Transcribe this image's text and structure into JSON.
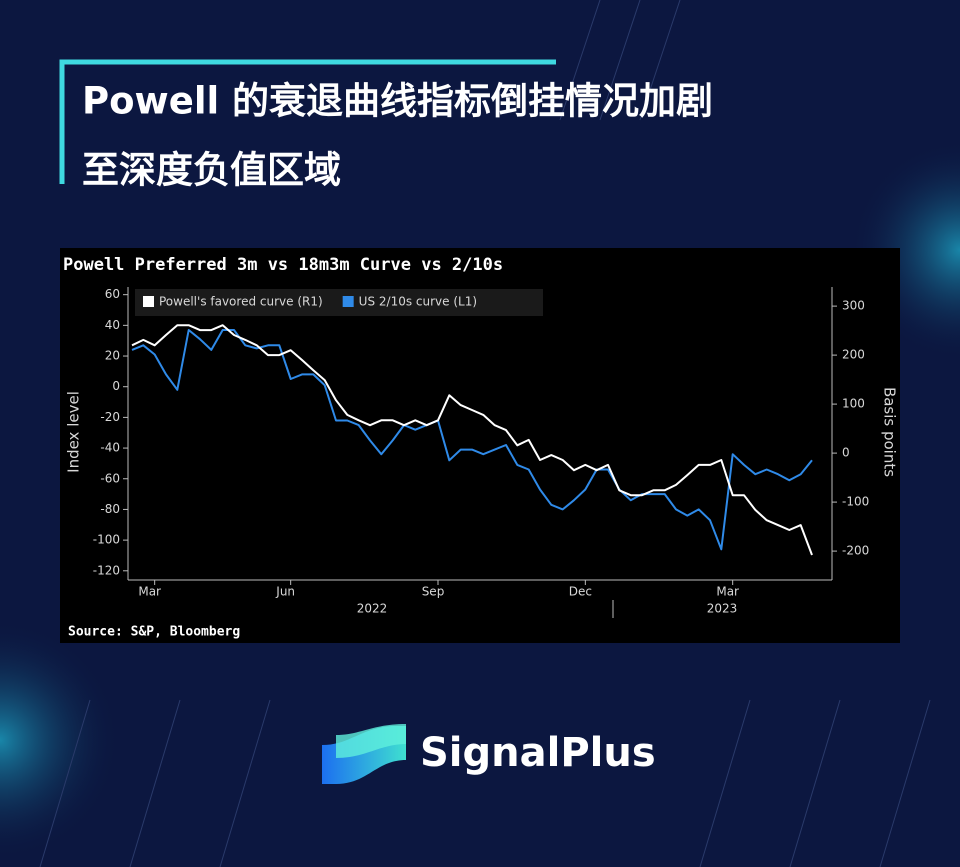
{
  "headline": {
    "lines": [
      "Powell 的衰退曲线指标倒挂情况加剧",
      "至深度负值区域"
    ]
  },
  "brand": "SignalPlus",
  "chart_data": {
    "type": "line",
    "title": "Powell Preferred 3m vs 18m3m Curve vs 2/10s",
    "source": "Source: S&P, Bloomberg",
    "ylabel": "Index level",
    "y2label": "Basis points",
    "categories": [
      null,
      null,
      "Mar",
      null,
      null,
      null,
      null,
      null,
      null,
      null,
      null,
      null,
      null,
      null,
      "Jun",
      null,
      null,
      null,
      null,
      null,
      null,
      null,
      null,
      null,
      null,
      null,
      null,
      "Sep",
      null,
      null,
      null,
      null,
      null,
      null,
      null,
      null,
      null,
      null,
      null,
      null,
      "Dec",
      null,
      null,
      null,
      null,
      null,
      null,
      null,
      null,
      null,
      null,
      null,
      null,
      "Mar",
      null,
      null,
      null,
      null,
      null,
      null,
      null
    ],
    "year_labels": [
      "2022",
      "2023"
    ],
    "series": [
      {
        "name": "Powell's favored curve (R1)",
        "color": "#ffffff",
        "axis": "y2",
        "values": [
          220,
          231,
          220,
          241,
          261,
          261,
          251,
          251,
          261,
          241,
          231,
          220,
          200,
          200,
          210,
          190,
          169,
          149,
          108,
          78,
          67,
          57,
          67,
          67,
          57,
          67,
          57,
          67,
          118,
          98,
          88,
          78,
          57,
          47,
          16,
          27,
          -14,
          -4,
          -14,
          -35,
          -24,
          -35,
          -24,
          -76,
          -86,
          -86,
          -76,
          -76,
          -65,
          -45,
          -24,
          -24,
          -14,
          -86,
          -86,
          -116,
          -137,
          -147,
          -157,
          -147,
          -208
        ]
      },
      {
        "name": "US 2/10s curve (L1)",
        "color": "#2f8ae8",
        "values": [
          24,
          27,
          21,
          8,
          -2,
          37,
          31,
          24,
          37,
          37,
          27,
          25,
          27,
          27,
          5,
          8,
          8,
          1,
          -22,
          -22,
          -25,
          -35,
          -44,
          -35,
          -25,
          -28,
          -25,
          -22,
          -48,
          -41,
          -41,
          -44,
          -41,
          -38,
          -51,
          -54,
          -67,
          -77,
          -80,
          -74,
          -67,
          -54,
          -54,
          -67,
          -74,
          -70,
          -70,
          -70,
          -80,
          -84,
          -80,
          -87,
          -106,
          -44,
          -51,
          -57,
          -54,
          -57,
          -61,
          -57,
          -48
        ]
      }
    ],
    "ylim": [
      -126,
      65
    ],
    "yticks": [
      60,
      40,
      20,
      0,
      -20,
      -40,
      -60,
      -80,
      -100,
      -120
    ],
    "y2lim": [
      -259,
      339
    ],
    "y2ticks": [
      300,
      200,
      100,
      0,
      -100,
      -200
    ],
    "legend": "top-left"
  }
}
